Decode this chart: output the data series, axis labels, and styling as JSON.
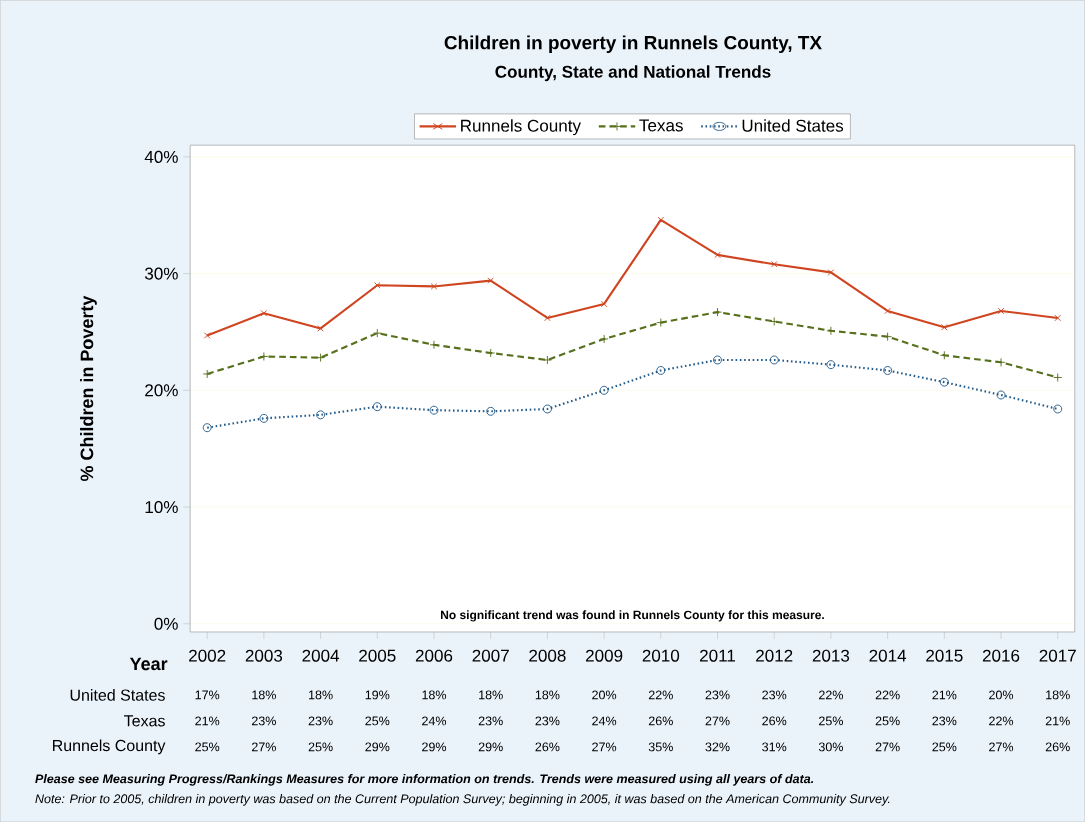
{
  "chart_data": {
    "type": "line",
    "title": "Children in poverty in Runnels County, TX",
    "subtitle": "County, State and National Trends",
    "xlabel": "Year",
    "ylabel": "% Children in Poverty",
    "categories": [
      "2002",
      "2003",
      "2004",
      "2005",
      "2006",
      "2007",
      "2008",
      "2009",
      "2010",
      "2011",
      "2012",
      "2013",
      "2014",
      "2015",
      "2016",
      "2017"
    ],
    "series": [
      {
        "name": "Runnels County",
        "color": "#cf4520",
        "marker": "cross",
        "line_style": "solid",
        "values": [
          24.7,
          26.6,
          25.3,
          29.0,
          28.9,
          29.4,
          26.2,
          27.4,
          34.6,
          31.6,
          30.8,
          30.1,
          26.8,
          25.4,
          26.8,
          26.2
        ],
        "value_labels": [
          "25%",
          "27%",
          "25%",
          "29%",
          "29%",
          "29%",
          "26%",
          "27%",
          "35%",
          "32%",
          "31%",
          "30%",
          "27%",
          "25%",
          "27%",
          "26%"
        ]
      },
      {
        "name": "Texas",
        "color": "#56701c",
        "marker": "plus",
        "line_style": "dashed",
        "values": [
          21.4,
          22.9,
          22.8,
          24.9,
          23.9,
          23.2,
          22.6,
          24.4,
          25.8,
          26.7,
          25.9,
          25.1,
          24.6,
          23.0,
          22.4,
          21.1
        ],
        "value_labels": [
          "21%",
          "23%",
          "23%",
          "25%",
          "24%",
          "23%",
          "23%",
          "24%",
          "26%",
          "27%",
          "26%",
          "25%",
          "25%",
          "23%",
          "22%",
          "21%"
        ]
      },
      {
        "name": "United States",
        "color": "#245c8c",
        "marker": "circle",
        "line_style": "dotted",
        "values": [
          16.8,
          17.6,
          17.9,
          18.6,
          18.3,
          18.2,
          18.4,
          20.0,
          21.7,
          22.6,
          22.6,
          22.2,
          21.7,
          20.7,
          19.6,
          18.4
        ],
        "value_labels": [
          "17%",
          "18%",
          "18%",
          "19%",
          "18%",
          "18%",
          "18%",
          "20%",
          "22%",
          "23%",
          "23%",
          "22%",
          "22%",
          "21%",
          "20%",
          "18%"
        ]
      }
    ],
    "ylim": [
      -0.7,
      41
    ],
    "yticks": [
      {
        "value": 0,
        "label": "0%"
      },
      {
        "value": 10,
        "label": "10%"
      },
      {
        "value": 20,
        "label": "20%"
      },
      {
        "value": 30,
        "label": "30%"
      },
      {
        "value": 40,
        "label": "40%"
      }
    ],
    "grid": "y",
    "legend": "top",
    "annotations": [
      "No significant trend was found in Runnels County for this measure.",
      "Please see Measuring Progress/Rankings Measures for more information on trends. Trends were measured using all years of data.",
      "Note: Prior to 2005, children in poverty was based on the Current Population Survey; beginning in 2005, it was based on the American Community Survey."
    ]
  }
}
